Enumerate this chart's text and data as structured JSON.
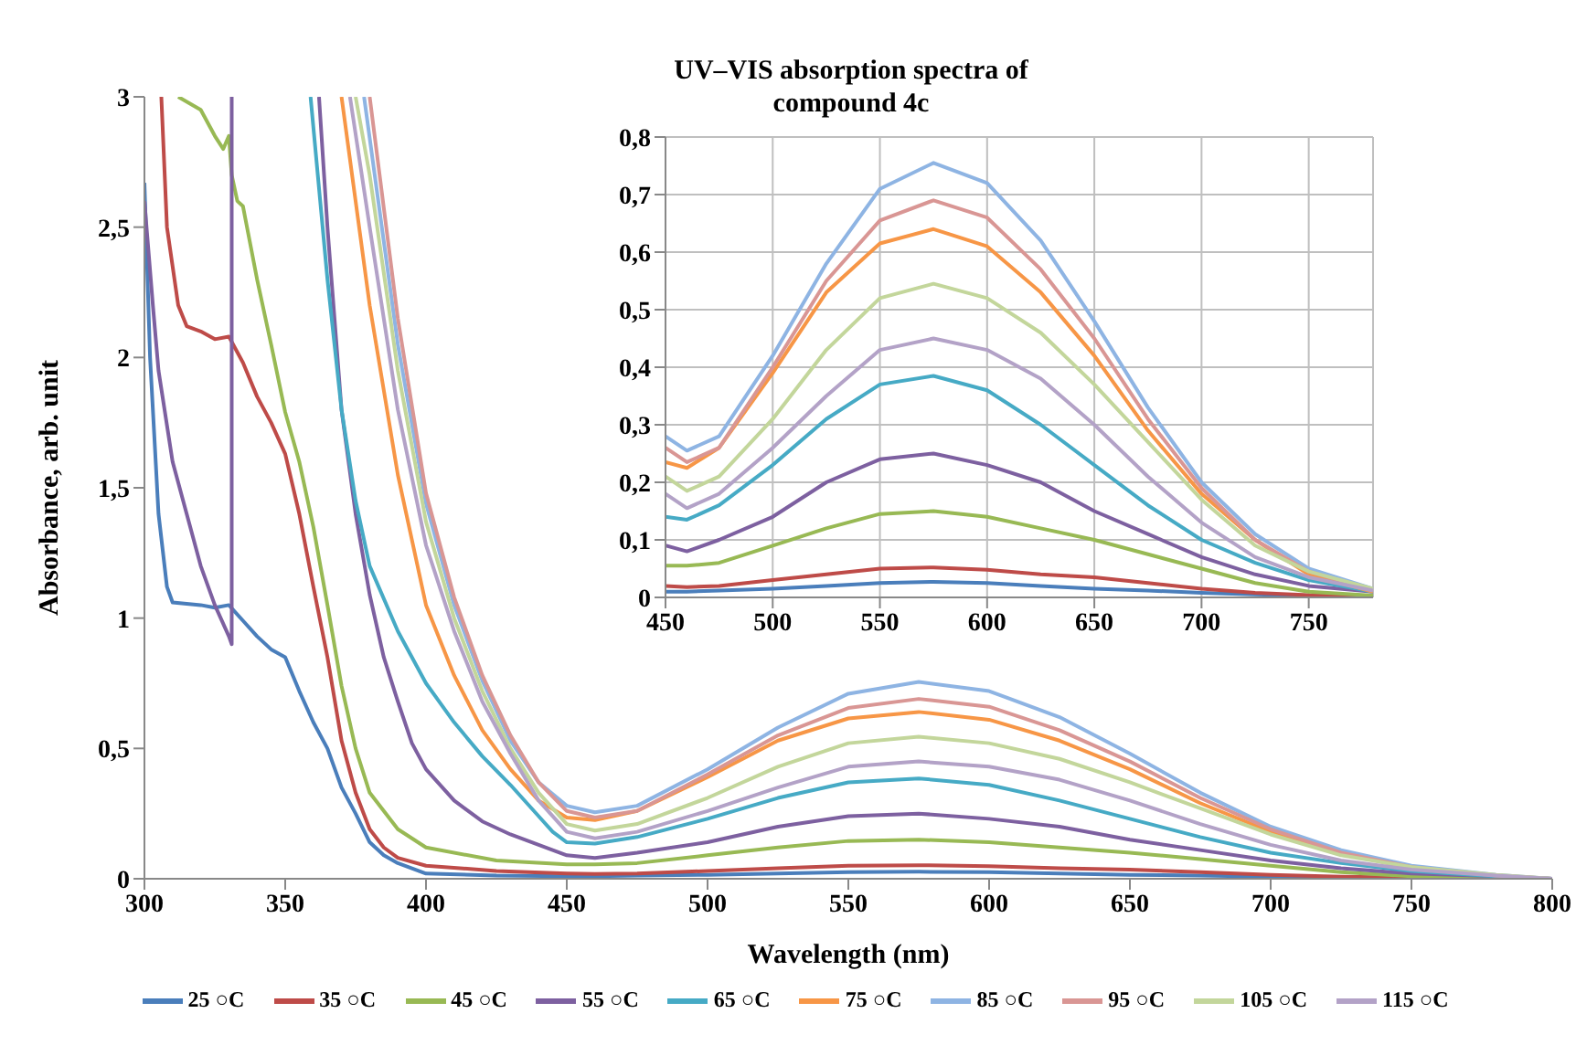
{
  "chart_data": [
    {
      "type": "line",
      "xlabel": "Wavelength (nm)",
      "ylabel": "Absorbance, arb. unit",
      "xlim": [
        300,
        800
      ],
      "xticks": [
        300,
        350,
        400,
        450,
        500,
        550,
        600,
        650,
        700,
        750,
        800
      ],
      "ylim": [
        0,
        3
      ],
      "yticks": [
        0,
        {
          "value": 0.5,
          "label": "0,5"
        },
        1,
        {
          "value": 1.5,
          "label": "1,5"
        },
        2,
        {
          "value": 2.5,
          "label": "2,5"
        },
        3
      ],
      "legend": "bottom",
      "series": [
        {
          "name": "25 ○C",
          "color": "#4a7ebb",
          "x": [
            300,
            302,
            305,
            308,
            310,
            320,
            325,
            330,
            335,
            340,
            345,
            350,
            355,
            360,
            365,
            370,
            375,
            380,
            385,
            390,
            400,
            425,
            450,
            460,
            475,
            500,
            525,
            550,
            575,
            600,
            625,
            650,
            675,
            700,
            725,
            750,
            780,
            800
          ],
          "values": [
            2.67,
            2.0,
            1.4,
            1.12,
            1.06,
            1.05,
            1.04,
            1.05,
            0.99,
            0.93,
            0.88,
            0.85,
            0.72,
            0.6,
            0.5,
            0.35,
            0.25,
            0.14,
            0.09,
            0.06,
            0.02,
            0.012,
            0.01,
            0.01,
            0.012,
            0.015,
            0.02,
            0.025,
            0.027,
            0.025,
            0.02,
            0.015,
            0.012,
            0.008,
            0.005,
            0.003,
            0.001,
            0
          ]
        },
        {
          "name": "35 ○C",
          "color": "#be4b48",
          "x": [
            306,
            308,
            312,
            315,
            320,
            325,
            330,
            335,
            340,
            345,
            350,
            355,
            360,
            365,
            370,
            375,
            380,
            385,
            390,
            400,
            425,
            450,
            460,
            475,
            500,
            525,
            550,
            575,
            600,
            625,
            650,
            675,
            700,
            725,
            750,
            780,
            800
          ],
          "values": [
            3,
            2.5,
            2.2,
            2.12,
            2.1,
            2.07,
            2.08,
            1.98,
            1.85,
            1.75,
            1.63,
            1.4,
            1.12,
            0.85,
            0.53,
            0.33,
            0.19,
            0.12,
            0.08,
            0.05,
            0.03,
            0.02,
            0.018,
            0.02,
            0.03,
            0.04,
            0.05,
            0.052,
            0.048,
            0.04,
            0.035,
            0.025,
            0.015,
            0.008,
            0.004,
            0.002,
            0
          ]
        },
        {
          "name": "45 ○C",
          "color": "#98b954",
          "x": [
            312,
            320,
            325,
            328,
            330,
            331,
            333,
            335,
            340,
            345,
            350,
            355,
            360,
            365,
            370,
            375,
            380,
            390,
            400,
            425,
            450,
            460,
            475,
            500,
            525,
            550,
            575,
            600,
            625,
            650,
            675,
            700,
            725,
            750,
            780,
            800
          ],
          "values": [
            3,
            2.95,
            2.85,
            2.8,
            2.85,
            2.7,
            2.6,
            2.58,
            2.3,
            2.05,
            1.79,
            1.6,
            1.35,
            1.05,
            0.74,
            0.5,
            0.33,
            0.19,
            0.12,
            0.07,
            0.055,
            0.055,
            0.06,
            0.09,
            0.12,
            0.145,
            0.15,
            0.14,
            0.12,
            0.1,
            0.075,
            0.05,
            0.025,
            0.01,
            0.003,
            0
          ]
        },
        {
          "name": "55 ○C",
          "color": "#7d60a0",
          "x": [
            300,
            303,
            305,
            310,
            315,
            320,
            325,
            330,
            331,
            331,
            346,
            362,
            365,
            370,
            375,
            380,
            385,
            390,
            395,
            400,
            410,
            420,
            430,
            440,
            450,
            460,
            475,
            500,
            525,
            550,
            575,
            600,
            625,
            650,
            675,
            700,
            725,
            750,
            780,
            800
          ],
          "values": [
            2.6,
            2.2,
            1.95,
            1.6,
            1.4,
            1.2,
            1.05,
            0.93,
            0.9,
            3,
            null,
            3,
            2.5,
            1.8,
            1.4,
            1.09,
            0.85,
            0.68,
            0.52,
            0.42,
            0.3,
            0.22,
            0.17,
            0.13,
            0.09,
            0.08,
            0.1,
            0.14,
            0.2,
            0.24,
            0.25,
            0.23,
            0.2,
            0.15,
            0.11,
            0.07,
            0.04,
            0.02,
            0.01,
            0
          ]
        },
        {
          "name": "65 ○C",
          "color": "#46aac5",
          "x": [
            359,
            365,
            370,
            375,
            380,
            390,
            400,
            410,
            420,
            430,
            440,
            445,
            450,
            460,
            475,
            500,
            525,
            550,
            575,
            600,
            625,
            650,
            675,
            700,
            725,
            750,
            780,
            800
          ],
          "values": [
            3,
            2.3,
            1.8,
            1.45,
            1.2,
            0.95,
            0.75,
            0.6,
            0.47,
            0.36,
            0.24,
            0.18,
            0.14,
            0.135,
            0.16,
            0.23,
            0.31,
            0.37,
            0.385,
            0.36,
            0.3,
            0.23,
            0.16,
            0.1,
            0.06,
            0.03,
            0.01,
            0
          ]
        },
        {
          "name": "75 ○C",
          "color": "#f79646",
          "x": [
            370,
            380,
            390,
            400,
            410,
            420,
            430,
            440,
            450,
            460,
            475,
            500,
            525,
            550,
            575,
            600,
            625,
            650,
            675,
            700,
            725,
            750
          ],
          "values": [
            3,
            2.2,
            1.55,
            1.05,
            0.78,
            0.57,
            0.42,
            0.3,
            0.235,
            0.225,
            0.26,
            0.39,
            0.53,
            0.615,
            0.64,
            0.61,
            0.53,
            0.42,
            0.29,
            0.18,
            0.1,
            0.04
          ]
        },
        {
          "name": "85 ○C",
          "color": "#8eb4e3",
          "x": [
            378,
            390,
            400,
            410,
            420,
            430,
            440,
            450,
            460,
            475,
            500,
            525,
            550,
            575,
            600,
            625,
            650,
            675,
            700,
            725,
            750,
            780,
            800
          ],
          "values": [
            3,
            2.05,
            1.44,
            1.05,
            0.76,
            0.53,
            0.37,
            0.28,
            0.255,
            0.28,
            0.42,
            0.58,
            0.71,
            0.755,
            0.72,
            0.62,
            0.48,
            0.33,
            0.2,
            0.11,
            0.05,
            0.015,
            0
          ]
        },
        {
          "name": "95 ○C",
          "color": "#d99694",
          "x": [
            380,
            390,
            400,
            410,
            420,
            430,
            440,
            450,
            460,
            475,
            500,
            525,
            550,
            575,
            600,
            625,
            650,
            675,
            700,
            725,
            750,
            780,
            800
          ],
          "values": [
            3,
            2.15,
            1.48,
            1.08,
            0.78,
            0.55,
            0.37,
            0.26,
            0.235,
            0.26,
            0.4,
            0.55,
            0.655,
            0.69,
            0.66,
            0.57,
            0.45,
            0.31,
            0.19,
            0.1,
            0.045,
            0.012,
            0
          ]
        },
        {
          "name": "105 ○C",
          "color": "#c3d69b",
          "x": [
            375,
            380,
            390,
            400,
            410,
            420,
            430,
            440,
            450,
            460,
            475,
            500,
            525,
            550,
            575,
            600,
            625,
            650,
            675,
            700,
            725,
            750,
            780,
            800
          ],
          "values": [
            3,
            2.7,
            1.95,
            1.37,
            1.0,
            0.72,
            0.5,
            0.33,
            0.21,
            0.185,
            0.21,
            0.31,
            0.43,
            0.52,
            0.545,
            0.52,
            0.46,
            0.37,
            0.27,
            0.17,
            0.09,
            0.045,
            0.015,
            0
          ]
        },
        {
          "name": "115 ○C",
          "color": "#b3a2c7",
          "x": [
            373,
            380,
            390,
            400,
            410,
            420,
            430,
            440,
            450,
            460,
            475,
            500,
            525,
            550,
            575,
            600,
            625,
            650,
            675,
            700,
            725,
            750,
            780,
            800
          ],
          "values": [
            3,
            2.5,
            1.8,
            1.28,
            0.95,
            0.68,
            0.48,
            0.3,
            0.18,
            0.155,
            0.18,
            0.26,
            0.35,
            0.43,
            0.45,
            0.43,
            0.38,
            0.3,
            0.21,
            0.13,
            0.07,
            0.035,
            0.012,
            0
          ]
        }
      ]
    },
    {
      "type": "line",
      "title": "UV–VIS absorption spectra of compound 4c",
      "xlim": [
        450,
        780
      ],
      "xticks": [
        450,
        500,
        550,
        600,
        650,
        700,
        750
      ],
      "ylim": [
        0,
        0.8
      ],
      "yticks": [
        0,
        {
          "value": 0.1,
          "label": "0,1"
        },
        {
          "value": 0.2,
          "label": "0,2"
        },
        {
          "value": 0.3,
          "label": "0,3"
        },
        {
          "value": 0.4,
          "label": "0,4"
        },
        {
          "value": 0.5,
          "label": "0,5"
        },
        {
          "value": 0.6,
          "label": "0,6"
        },
        {
          "value": 0.7,
          "label": "0,7"
        },
        {
          "value": 0.8,
          "label": "0,8"
        }
      ],
      "grid": true,
      "x": [
        450,
        460,
        475,
        500,
        525,
        550,
        575,
        600,
        625,
        650,
        675,
        700,
        725,
        750,
        780
      ],
      "series": [
        {
          "color": "#4a7ebb",
          "values": [
            0.01,
            0.01,
            0.012,
            0.015,
            0.02,
            0.025,
            0.027,
            0.025,
            0.02,
            0.015,
            0.012,
            0.008,
            0.005,
            0.003,
            0.001
          ]
        },
        {
          "color": "#be4b48",
          "values": [
            0.02,
            0.018,
            0.02,
            0.03,
            0.04,
            0.05,
            0.052,
            0.048,
            0.04,
            0.035,
            0.025,
            0.015,
            0.008,
            0.004,
            0.002
          ]
        },
        {
          "color": "#98b954",
          "values": [
            0.055,
            0.055,
            0.06,
            0.09,
            0.12,
            0.145,
            0.15,
            0.14,
            0.12,
            0.1,
            0.075,
            0.05,
            0.025,
            0.01,
            0.003
          ]
        },
        {
          "color": "#7d60a0",
          "values": [
            0.09,
            0.08,
            0.1,
            0.14,
            0.2,
            0.24,
            0.25,
            0.23,
            0.2,
            0.15,
            0.11,
            0.07,
            0.04,
            0.02,
            0.01
          ]
        },
        {
          "color": "#46aac5",
          "values": [
            0.14,
            0.135,
            0.16,
            0.23,
            0.31,
            0.37,
            0.385,
            0.36,
            0.3,
            0.23,
            0.16,
            0.1,
            0.06,
            0.03,
            0.01
          ]
        },
        {
          "color": "#f79646",
          "values": [
            0.235,
            0.225,
            0.26,
            0.39,
            0.53,
            0.615,
            0.64,
            0.61,
            0.53,
            0.42,
            0.29,
            0.18,
            0.1,
            0.04,
            0.01
          ]
        },
        {
          "color": "#8eb4e3",
          "values": [
            0.28,
            0.255,
            0.28,
            0.42,
            0.58,
            0.71,
            0.755,
            0.72,
            0.62,
            0.48,
            0.33,
            0.2,
            0.11,
            0.05,
            0.015
          ]
        },
        {
          "color": "#d99694",
          "values": [
            0.26,
            0.235,
            0.26,
            0.4,
            0.55,
            0.655,
            0.69,
            0.66,
            0.57,
            0.45,
            0.31,
            0.19,
            0.1,
            0.045,
            0.012
          ]
        },
        {
          "color": "#c3d69b",
          "values": [
            0.21,
            0.185,
            0.21,
            0.31,
            0.43,
            0.52,
            0.545,
            0.52,
            0.46,
            0.37,
            0.27,
            0.17,
            0.09,
            0.045,
            0.015
          ]
        },
        {
          "color": "#b3a2c7",
          "values": [
            0.18,
            0.155,
            0.18,
            0.26,
            0.35,
            0.43,
            0.45,
            0.43,
            0.38,
            0.3,
            0.21,
            0.13,
            0.07,
            0.035,
            0.012
          ]
        }
      ]
    }
  ]
}
